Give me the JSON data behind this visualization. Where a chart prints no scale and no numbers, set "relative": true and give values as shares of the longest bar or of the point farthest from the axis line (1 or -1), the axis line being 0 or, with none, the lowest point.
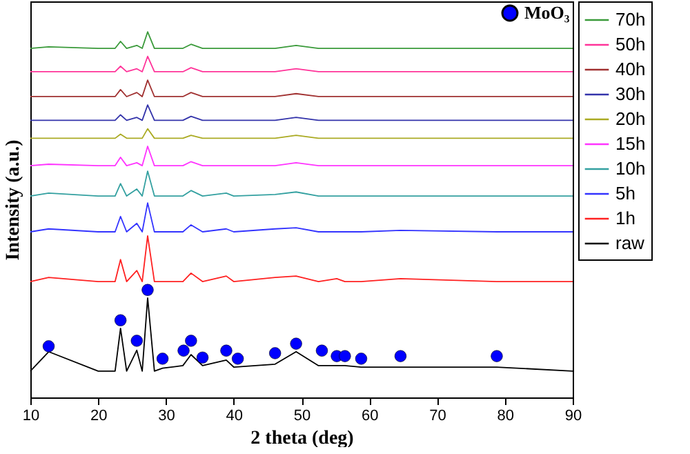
{
  "chart_data": {
    "type": "line",
    "relative": true,
    "xlabel": "2 theta (deg)",
    "ylabel": "Intensity (a.u.)",
    "xlim": [
      10,
      90
    ],
    "xticks": [
      10,
      20,
      30,
      40,
      50,
      60,
      70,
      80,
      90
    ],
    "tick_labels": "x",
    "grid": false,
    "legend": "right",
    "x": [
      10,
      12.7,
      20,
      22.5,
      23.3,
      24.2,
      25.7,
      26.5,
      27.3,
      28.3,
      29.5,
      32.5,
      33.7,
      35.4,
      38.9,
      40.0,
      46.1,
      49.2,
      52.5,
      55.2,
      56.4,
      58.8,
      64.6,
      78.8,
      90
    ],
    "series": [
      {
        "name": "70h",
        "color": "#3a9a3a",
        "values": [
          0.955,
          0.959,
          0.955,
          0.955,
          0.974,
          0.955,
          0.963,
          0.955,
          1.0,
          0.955,
          0.955,
          0.955,
          0.966,
          0.955,
          0.955,
          0.955,
          0.955,
          0.963,
          0.955,
          0.955,
          0.955,
          0.955,
          0.955,
          0.955,
          0.955
        ]
      },
      {
        "name": "50h",
        "color": "#ff3399",
        "values": [
          0.891,
          0.891,
          0.891,
          0.891,
          0.906,
          0.891,
          0.899,
          0.891,
          0.933,
          0.891,
          0.891,
          0.891,
          0.902,
          0.891,
          0.891,
          0.891,
          0.891,
          0.899,
          0.891,
          0.891,
          0.891,
          0.891,
          0.891,
          0.891,
          0.891
        ]
      },
      {
        "name": "40h",
        "color": "#a03030",
        "values": [
          0.823,
          0.823,
          0.823,
          0.823,
          0.842,
          0.823,
          0.834,
          0.823,
          0.868,
          0.823,
          0.823,
          0.823,
          0.834,
          0.823,
          0.823,
          0.823,
          0.823,
          0.831,
          0.823,
          0.823,
          0.823,
          0.823,
          0.823,
          0.823,
          0.823
        ]
      },
      {
        "name": "30h",
        "color": "#3333aa",
        "values": [
          0.758,
          0.758,
          0.758,
          0.758,
          0.773,
          0.758,
          0.766,
          0.758,
          0.8,
          0.758,
          0.758,
          0.758,
          0.769,
          0.758,
          0.758,
          0.758,
          0.758,
          0.766,
          0.758,
          0.758,
          0.758,
          0.758,
          0.758,
          0.758,
          0.758
        ]
      },
      {
        "name": "20h",
        "color": "#aaaa22",
        "values": [
          0.709,
          0.709,
          0.709,
          0.709,
          0.72,
          0.709,
          0.709,
          0.709,
          0.735,
          0.709,
          0.709,
          0.709,
          0.717,
          0.709,
          0.709,
          0.709,
          0.709,
          0.717,
          0.709,
          0.709,
          0.709,
          0.709,
          0.709,
          0.709,
          0.709
        ]
      },
      {
        "name": "15h",
        "color": "#ff33ff",
        "values": [
          0.634,
          0.638,
          0.634,
          0.634,
          0.657,
          0.634,
          0.642,
          0.634,
          0.687,
          0.634,
          0.634,
          0.634,
          0.645,
          0.634,
          0.634,
          0.634,
          0.634,
          0.642,
          0.634,
          0.634,
          0.634,
          0.634,
          0.634,
          0.634,
          0.634
        ]
      },
      {
        "name": "10h",
        "color": "#33a0a0",
        "values": [
          0.551,
          0.559,
          0.551,
          0.551,
          0.585,
          0.551,
          0.57,
          0.551,
          0.619,
          0.551,
          0.551,
          0.551,
          0.566,
          0.551,
          0.559,
          0.551,
          0.555,
          0.562,
          0.551,
          0.551,
          0.551,
          0.551,
          0.551,
          0.551,
          0.551
        ]
      },
      {
        "name": "5h",
        "color": "#3333ff",
        "values": [
          0.453,
          0.461,
          0.453,
          0.453,
          0.495,
          0.453,
          0.476,
          0.453,
          0.532,
          0.453,
          0.453,
          0.453,
          0.472,
          0.453,
          0.461,
          0.453,
          0.461,
          0.464,
          0.453,
          0.453,
          0.453,
          0.453,
          0.457,
          0.453,
          0.453
        ]
      },
      {
        "name": "1h",
        "color": "#ff2020",
        "values": [
          0.317,
          0.328,
          0.317,
          0.317,
          0.377,
          0.317,
          0.347,
          0.317,
          0.442,
          0.317,
          0.317,
          0.317,
          0.34,
          0.317,
          0.332,
          0.317,
          0.328,
          0.332,
          0.317,
          0.325,
          0.317,
          0.317,
          0.325,
          0.317,
          0.317
        ]
      },
      {
        "name": "raw",
        "color": "#000000",
        "values": [
          0.072,
          0.125,
          0.072,
          0.072,
          0.189,
          0.072,
          0.129,
          0.072,
          0.272,
          0.072,
          0.08,
          0.087,
          0.117,
          0.087,
          0.102,
          0.083,
          0.091,
          0.125,
          0.087,
          0.087,
          0.087,
          0.083,
          0.083,
          0.083,
          0.072
        ]
      },
      {
        "name": "MoO₃",
        "type": "scatter",
        "marker": "circle",
        "color": "#0000ff",
        "x": [
          12.7,
          23.3,
          25.7,
          27.3,
          29.5,
          32.6,
          33.7,
          35.4,
          38.9,
          40.6,
          46.1,
          49.2,
          53.0,
          55.2,
          56.4,
          58.8,
          64.6,
          78.8
        ],
        "values": [
          0.14,
          0.211,
          0.155,
          0.294,
          0.106,
          0.128,
          0.155,
          0.109,
          0.128,
          0.106,
          0.121,
          0.147,
          0.128,
          0.113,
          0.113,
          0.106,
          0.113,
          0.113
        ]
      }
    ]
  }
}
